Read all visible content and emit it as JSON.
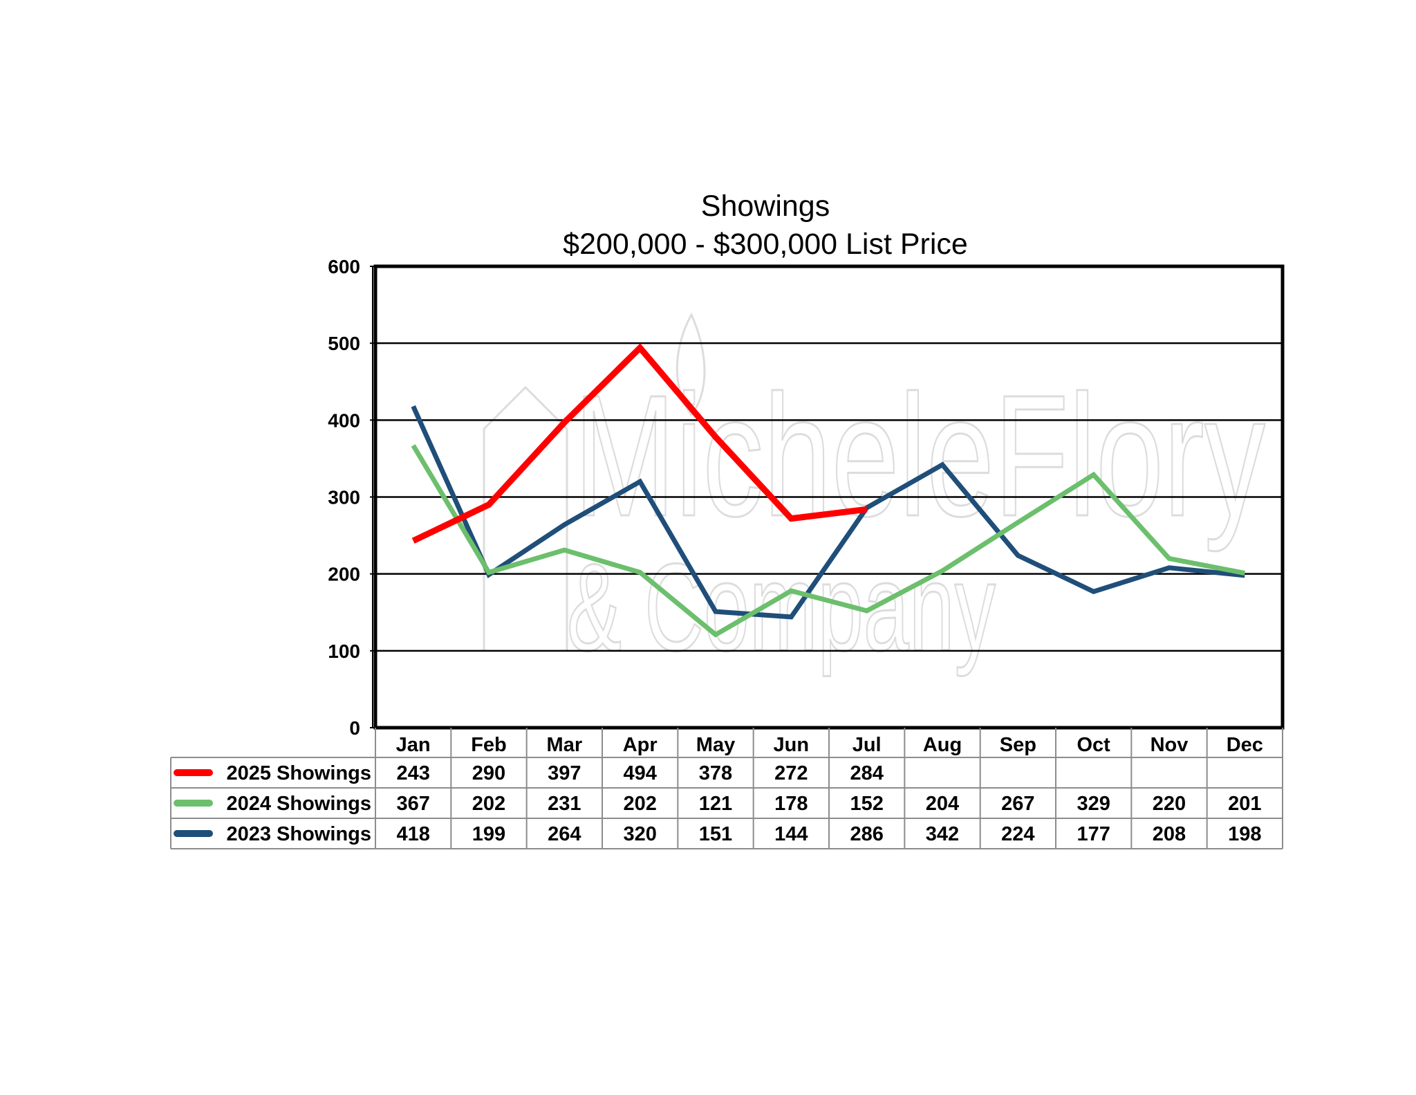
{
  "watermark": {
    "line1": "MicheleFlory",
    "line2": "& Company"
  },
  "chart_data": {
    "type": "line",
    "title": "Showings",
    "subtitle": "$200,000 - $300,000 List Price",
    "categories": [
      "Jan",
      "Feb",
      "Mar",
      "Apr",
      "May",
      "Jun",
      "Jul",
      "Aug",
      "Sep",
      "Oct",
      "Nov",
      "Dec"
    ],
    "ylim": [
      0,
      600
    ],
    "yticks": [
      0,
      100,
      200,
      300,
      400,
      500,
      600
    ],
    "grid": true,
    "legend": "data-table-below",
    "series": [
      {
        "name": "2025 Showings",
        "color": "#ff0000",
        "values": [
          243,
          290,
          397,
          494,
          378,
          272,
          284,
          null,
          null,
          null,
          null,
          null
        ]
      },
      {
        "name": "2024 Showings",
        "color": "#6cbf6c",
        "values": [
          367,
          202,
          231,
          202,
          121,
          178,
          152,
          204,
          267,
          329,
          220,
          201
        ]
      },
      {
        "name": "2023 Showings",
        "color": "#1f4e79",
        "values": [
          418,
          199,
          264,
          320,
          151,
          144,
          286,
          342,
          224,
          177,
          208,
          198
        ]
      }
    ]
  }
}
